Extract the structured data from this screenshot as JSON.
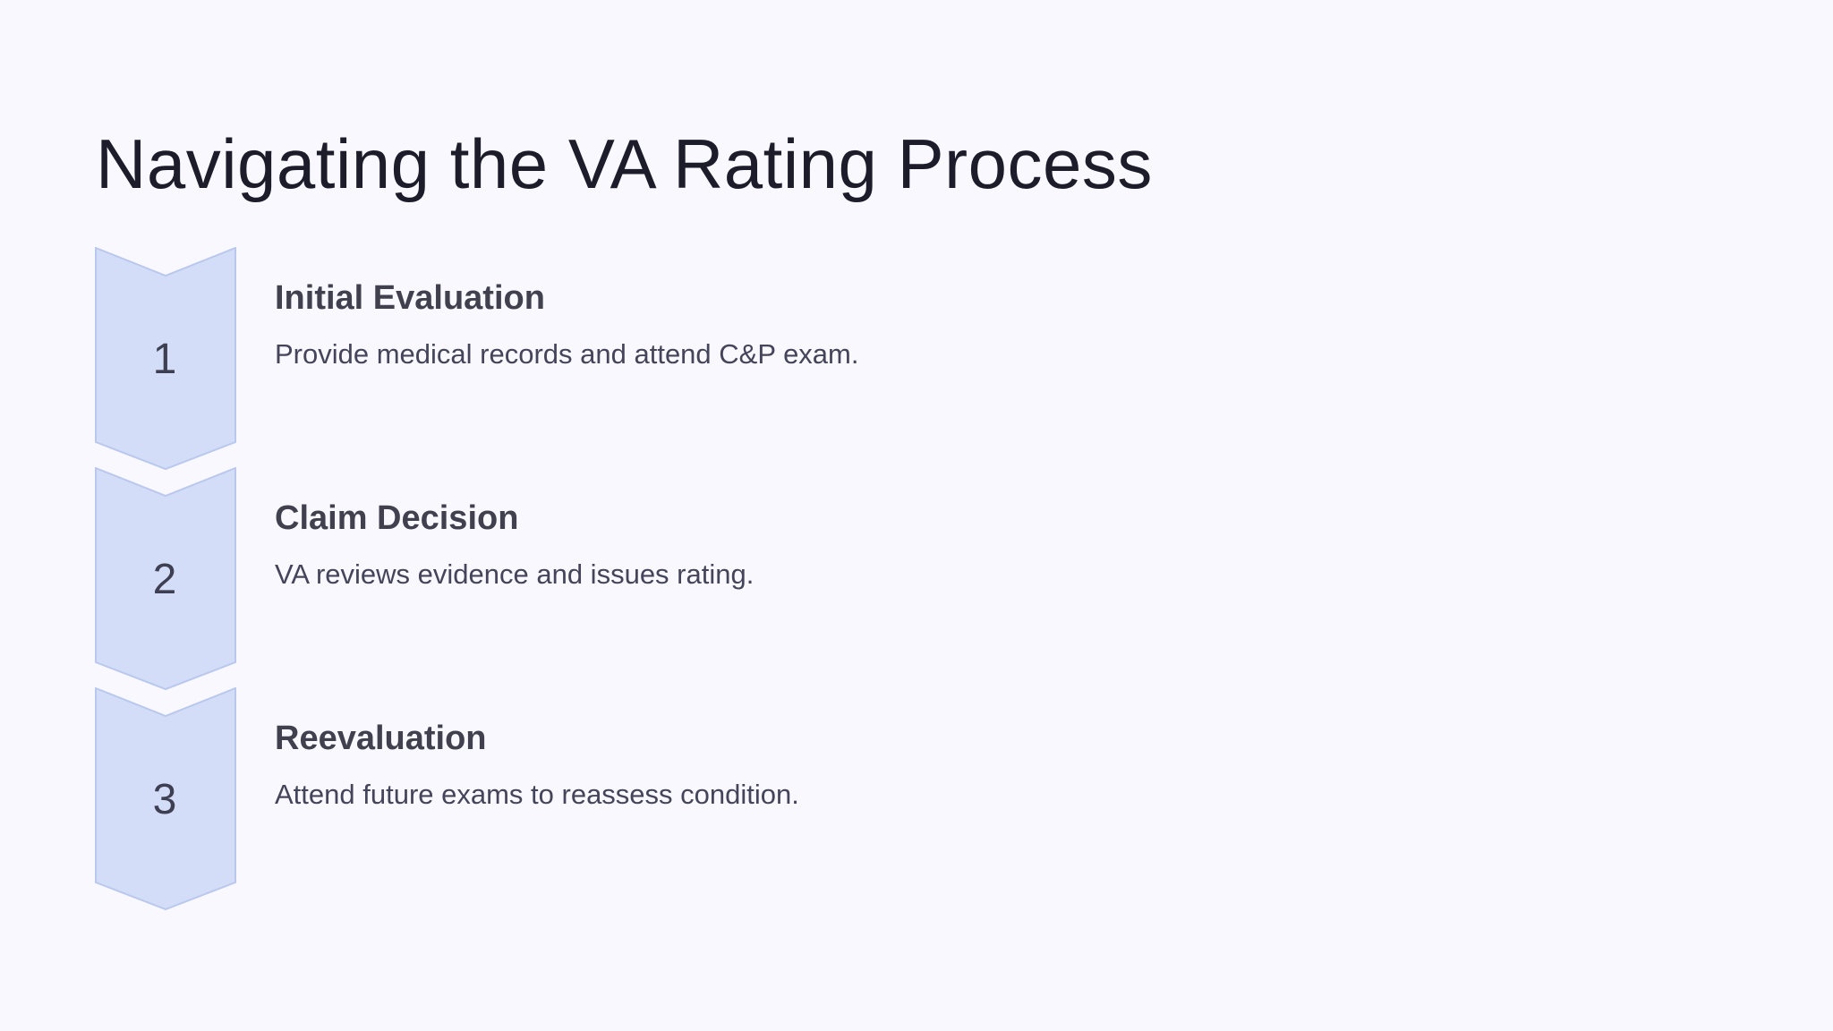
{
  "title": "Navigating the VA Rating Process",
  "colors": {
    "background": "#f8f8fe",
    "chevron_fill": "#d3ddf8",
    "chevron_stroke": "#b9c8ec",
    "title": "#1c1c2a",
    "text": "#40404f"
  },
  "steps": [
    {
      "number": "1",
      "title": "Initial Evaluation",
      "description": "Provide medical records and attend C&P exam."
    },
    {
      "number": "2",
      "title": "Claim Decision",
      "description": "VA reviews evidence and issues rating."
    },
    {
      "number": "3",
      "title": "Reevaluation",
      "description": "Attend future exams to reassess condition."
    }
  ]
}
